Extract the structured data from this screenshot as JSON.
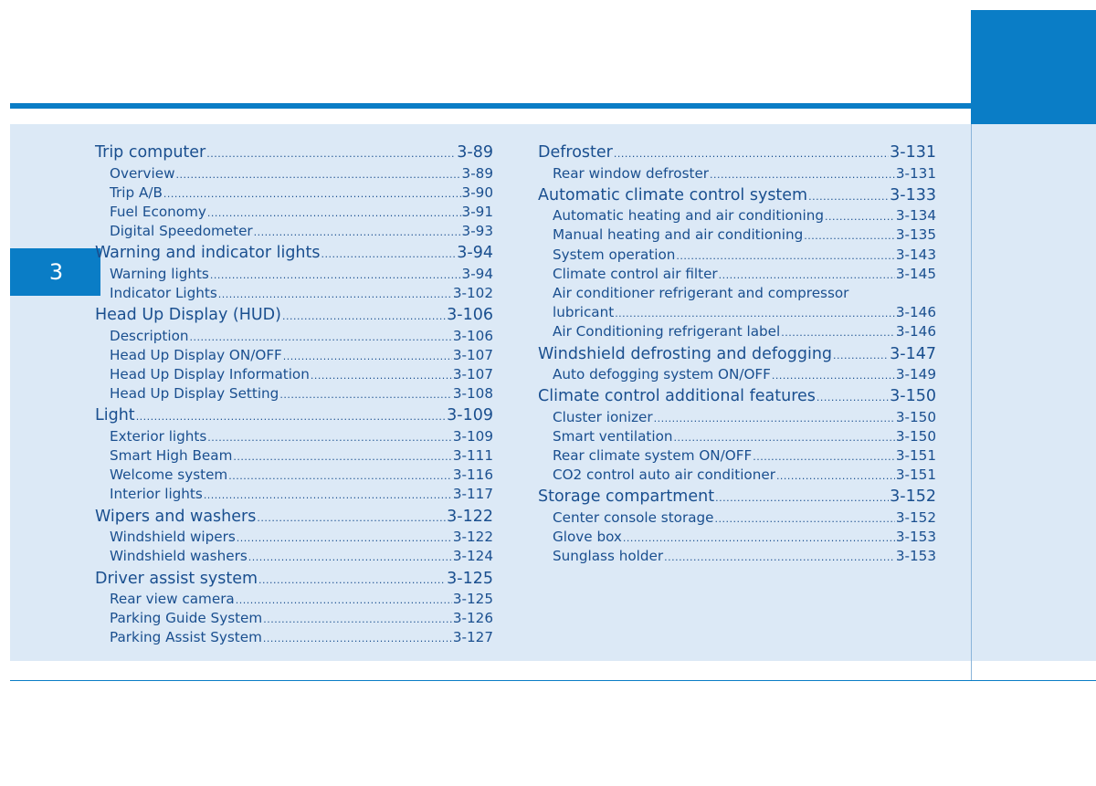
{
  "chapter_tab": "3",
  "left_column": [
    {
      "level": "main",
      "title": "Trip computer",
      "page": "3-89"
    },
    {
      "level": "sub",
      "title": "Overview",
      "page": "3-89"
    },
    {
      "level": "sub",
      "title": "Trip A/B",
      "page": "3-90"
    },
    {
      "level": "sub",
      "title": "Fuel Economy",
      "page": "3-91"
    },
    {
      "level": "sub",
      "title": "Digital Speedometer",
      "page": "3-93"
    },
    {
      "level": "main",
      "title": "Warning and indicator lights",
      "page": "3-94"
    },
    {
      "level": "sub",
      "title": "Warning lights",
      "page": "3-94"
    },
    {
      "level": "sub",
      "title": "Indicator Lights",
      "page": "3-102"
    },
    {
      "level": "main",
      "title": "Head Up Display (HUD)",
      "page": "3-106"
    },
    {
      "level": "sub",
      "title": "Description",
      "page": "3-106"
    },
    {
      "level": "sub",
      "title": "Head Up Display ON/OFF",
      "page": "3-107"
    },
    {
      "level": "sub",
      "title": "Head Up Display Information",
      "page": "3-107"
    },
    {
      "level": "sub",
      "title": "Head Up Display Setting",
      "page": "3-108"
    },
    {
      "level": "main",
      "title": "Light",
      "page": "3-109"
    },
    {
      "level": "sub",
      "title": "Exterior lights",
      "page": "3-109"
    },
    {
      "level": "sub",
      "title": "Smart High Beam",
      "page": "3-111"
    },
    {
      "level": "sub",
      "title": "Welcome system",
      "page": "3-116"
    },
    {
      "level": "sub",
      "title": "Interior lights",
      "page": "3-117"
    },
    {
      "level": "main",
      "title": "Wipers and washers",
      "page": "3-122"
    },
    {
      "level": "sub",
      "title": "Windshield wipers",
      "page": "3-122"
    },
    {
      "level": "sub",
      "title": "Windshield washers",
      "page": "3-124"
    },
    {
      "level": "main",
      "title": "Driver assist system",
      "page": "3-125"
    },
    {
      "level": "sub",
      "title": "Rear view camera",
      "page": "3-125"
    },
    {
      "level": "sub",
      "title": "Parking Guide System",
      "page": "3-126"
    },
    {
      "level": "sub",
      "title": "Parking Assist System",
      "page": "3-127"
    }
  ],
  "right_column": [
    {
      "level": "main",
      "title": "Defroster",
      "page": "3-131"
    },
    {
      "level": "sub",
      "title": "Rear window defroster",
      "page": "3-131"
    },
    {
      "level": "main",
      "title": "Automatic climate control system",
      "page": "3-133"
    },
    {
      "level": "sub",
      "title": "Automatic heating and air conditioning",
      "page": "3-134"
    },
    {
      "level": "sub",
      "title": "Manual heating and air conditioning",
      "page": "3-135"
    },
    {
      "level": "sub",
      "title": "System operation",
      "page": "3-143"
    },
    {
      "level": "sub",
      "title": "Climate control air filter",
      "page": "3-145"
    },
    {
      "level": "sub",
      "title": "Air conditioner refrigerant and compressor",
      "page": ""
    },
    {
      "level": "sub",
      "title": "lubricant",
      "page": "3-146"
    },
    {
      "level": "sub",
      "title": "Air Conditioning refrigerant label",
      "page": "3-146"
    },
    {
      "level": "main",
      "title": "Windshield defrosting and defogging",
      "page": "3-147"
    },
    {
      "level": "sub",
      "title": "Auto defogging system ON/OFF",
      "page": "3-149"
    },
    {
      "level": "main",
      "title": "Climate control additional features",
      "page": "3-150"
    },
    {
      "level": "sub",
      "title": "Cluster ionizer",
      "page": "3-150"
    },
    {
      "level": "sub",
      "title": "Smart ventilation",
      "page": "3-150"
    },
    {
      "level": "sub",
      "title": "Rear climate system ON/OFF",
      "page": "3-151"
    },
    {
      "level": "sub",
      "title": "CO2 control auto air conditioner",
      "page": "3-151"
    },
    {
      "level": "main",
      "title": "Storage compartment",
      "page": "3-152"
    },
    {
      "level": "sub",
      "title": "Center console storage",
      "page": "3-152"
    },
    {
      "level": "sub",
      "title": "Glove box",
      "page": "3-153"
    },
    {
      "level": "sub",
      "title": "Sunglass holder",
      "page": "3-153"
    }
  ]
}
